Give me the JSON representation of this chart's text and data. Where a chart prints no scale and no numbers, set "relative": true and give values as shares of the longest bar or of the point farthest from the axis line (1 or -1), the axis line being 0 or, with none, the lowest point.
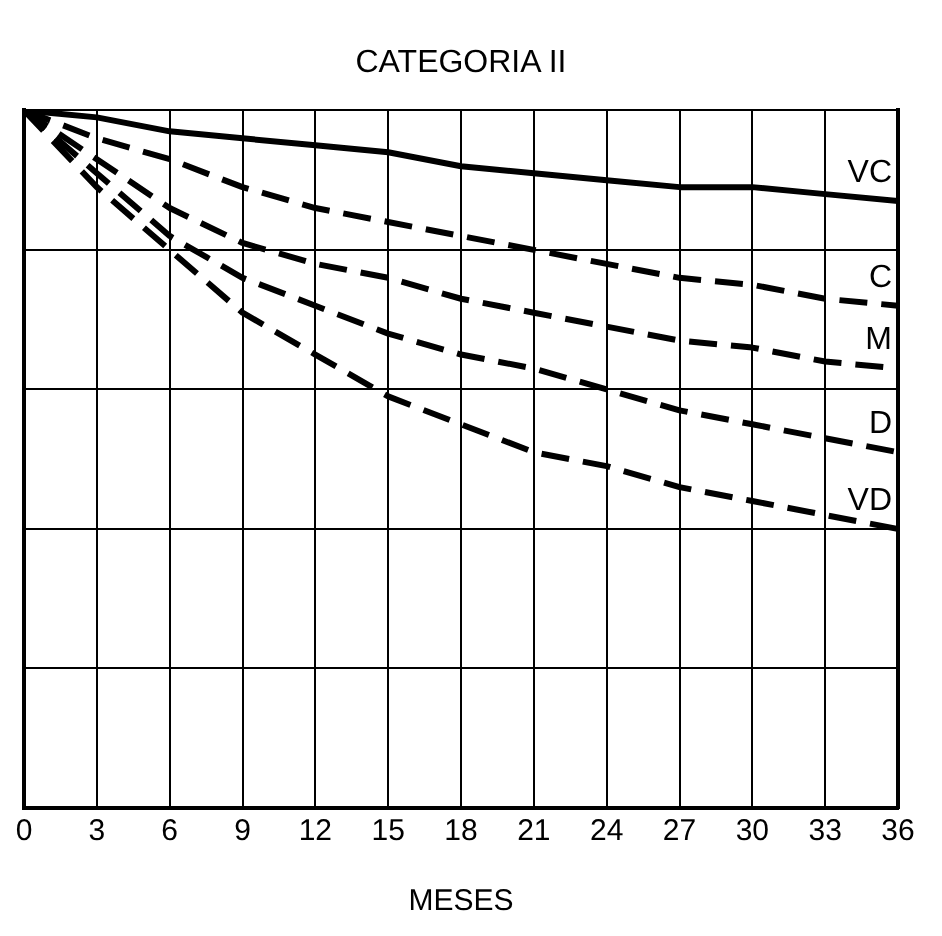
{
  "chart_data": {
    "type": "line",
    "title": "CATEGORIA II",
    "xlabel": "MESES",
    "relative": true,
    "x": [
      0,
      3,
      6,
      9,
      12,
      15,
      18,
      21,
      24,
      27,
      30,
      33,
      36
    ],
    "xlim": [
      0,
      36
    ],
    "xticks": [
      0,
      3,
      6,
      9,
      12,
      15,
      18,
      21,
      24,
      27,
      30,
      33,
      36
    ],
    "grid": true,
    "legend": false,
    "marker": "none",
    "series": [
      {
        "name": "VC",
        "color": "#000000",
        "line_style": "solid",
        "values": [
          1,
          0.99,
          0.97,
          0.96,
          0.95,
          0.94,
          0.92,
          0.91,
          0.9,
          0.89,
          0.89,
          0.88,
          0.87
        ]
      },
      {
        "name": "C",
        "color": "#000000",
        "line_style": "dashed",
        "values": [
          1,
          0.96,
          0.93,
          0.89,
          0.86,
          0.84,
          0.82,
          0.8,
          0.78,
          0.76,
          0.75,
          0.73,
          0.72
        ]
      },
      {
        "name": "M",
        "color": "#000000",
        "line_style": "dashed",
        "values": [
          1,
          0.93,
          0.86,
          0.81,
          0.78,
          0.76,
          0.73,
          0.71,
          0.69,
          0.67,
          0.66,
          0.64,
          0.63
        ]
      },
      {
        "name": "D",
        "color": "#000000",
        "line_style": "dashed",
        "values": [
          1,
          0.91,
          0.82,
          0.76,
          0.72,
          0.68,
          0.65,
          0.63,
          0.6,
          0.57,
          0.55,
          0.53,
          0.51
        ]
      },
      {
        "name": "VD",
        "color": "#000000",
        "line_style": "dashed",
        "values": [
          1,
          0.89,
          0.8,
          0.71,
          0.65,
          0.59,
          0.55,
          0.51,
          0.49,
          0.46,
          0.44,
          0.42,
          0.4
        ]
      }
    ]
  }
}
